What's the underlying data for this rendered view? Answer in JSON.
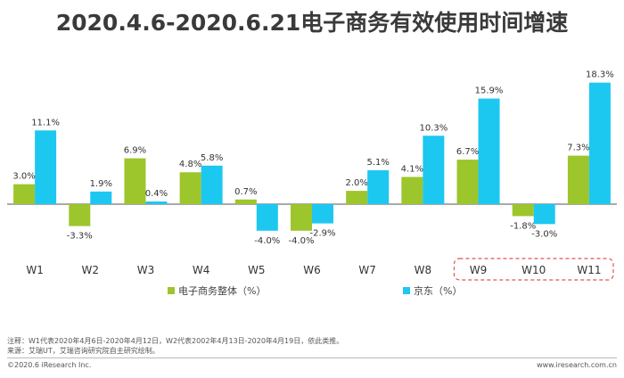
{
  "title": "2020.4.6-2020.6.21电子商务有效使用时间增速",
  "chart_data": {
    "type": "bar",
    "categories": [
      "W1",
      "W2",
      "W3",
      "W4",
      "W5",
      "W6",
      "W7",
      "W8",
      "W9",
      "W10",
      "W11"
    ],
    "series": [
      {
        "name": "电子商务整体（%）",
        "color": "#9dc52c",
        "values": [
          3.0,
          -3.3,
          6.9,
          4.8,
          0.7,
          -4.0,
          2.0,
          4.1,
          6.7,
          -1.8,
          7.3
        ],
        "labels": [
          "3.0%",
          "-3.3%",
          "6.9%",
          "4.8%",
          "0.7%",
          "-4.0%",
          "2.0%",
          "4.1%",
          "6.7%",
          "-1.8%",
          "7.3%"
        ]
      },
      {
        "name": "京东（%）",
        "color": "#1cc8f0",
        "values": [
          11.1,
          1.9,
          0.4,
          5.8,
          -4.0,
          -2.9,
          5.1,
          10.3,
          15.9,
          -3.0,
          18.3
        ],
        "labels": [
          "11.1%",
          "1.9%",
          "0.4%",
          "5.8%",
          "-4.0%",
          "-2.9%",
          "5.1%",
          "10.3%",
          "15.9%",
          "-3.0%",
          "18.3%"
        ]
      }
    ],
    "highlighted_categories": [
      "W9",
      "W10",
      "W11"
    ],
    "highlight_color": "#e05555"
  },
  "notes": {
    "line1": "注释：W1代表2020年4月6日-2020年4月12日，W2代表2002年4月13日-2020年4月19日，依此类推。",
    "line2": "来源：艾瑞UT，艾瑞咨询研究院自主研究绘制。"
  },
  "footer": {
    "left": "©2020.6 iResearch Inc.",
    "right": "www.iresearch.com.cn"
  }
}
